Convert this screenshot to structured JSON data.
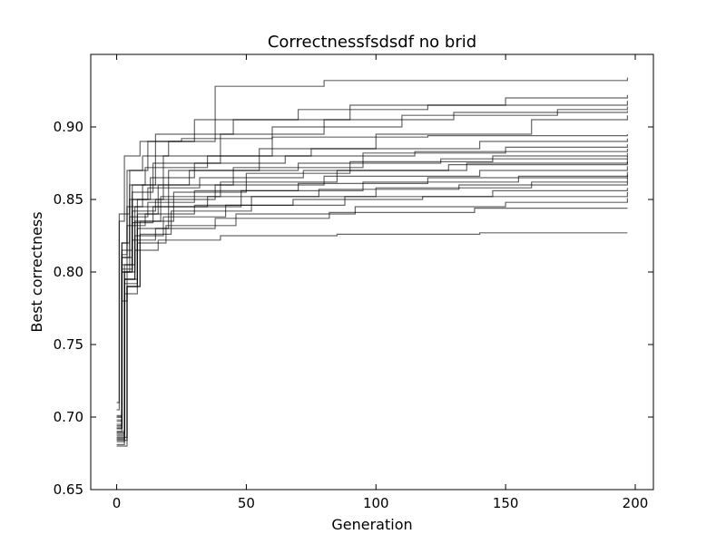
{
  "chart_data": {
    "type": "line",
    "title": "Correctnessfsdsdf no brid",
    "xlabel": "Generation",
    "ylabel": "Best correctness",
    "xlim": [
      -10,
      207
    ],
    "ylim": [
      0.65,
      0.95
    ],
    "xticks": [
      0,
      50,
      100,
      150,
      200
    ],
    "xtick_labels": [
      "0",
      "50",
      "100",
      "150",
      "200"
    ],
    "yticks": [
      0.65,
      0.7,
      0.75,
      0.8,
      0.85,
      0.9
    ],
    "ytick_labels": [
      "0.65",
      "0.70",
      "0.75",
      "0.80",
      "0.85",
      "0.90"
    ],
    "grid": false,
    "legend": "none",
    "line_color": "#000000",
    "series": [
      {
        "x": [
          0,
          2,
          4,
          10,
          20,
          38,
          80,
          197
        ],
        "values": [
          0.69,
          0.78,
          0.87,
          0.88,
          0.89,
          0.928,
          0.932,
          0.934
        ]
      },
      {
        "x": [
          0,
          3,
          6,
          15,
          45,
          90,
          150,
          197
        ],
        "values": [
          0.685,
          0.8,
          0.86,
          0.895,
          0.905,
          0.915,
          0.92,
          0.922
        ]
      },
      {
        "x": [
          0,
          2,
          5,
          12,
          30,
          70,
          120,
          197
        ],
        "values": [
          0.7,
          0.82,
          0.87,
          0.89,
          0.905,
          0.912,
          0.915,
          0.918
        ]
      },
      {
        "x": [
          0,
          4,
          8,
          18,
          60,
          110,
          170,
          197
        ],
        "values": [
          0.68,
          0.79,
          0.85,
          0.88,
          0.9,
          0.908,
          0.912,
          0.914
        ]
      },
      {
        "x": [
          0,
          2,
          6,
          14,
          40,
          80,
          130,
          197
        ],
        "values": [
          0.692,
          0.81,
          0.855,
          0.875,
          0.895,
          0.905,
          0.91,
          0.911
        ]
      },
      {
        "x": [
          0,
          3,
          7,
          20,
          55,
          100,
          160,
          197
        ],
        "values": [
          0.688,
          0.805,
          0.845,
          0.87,
          0.885,
          0.895,
          0.905,
          0.908
        ]
      },
      {
        "x": [
          0,
          1,
          3,
          9,
          25,
          60,
          120,
          197
        ],
        "values": [
          0.71,
          0.835,
          0.88,
          0.89,
          0.892,
          0.893,
          0.894,
          0.895
        ]
      },
      {
        "x": [
          0,
          2,
          5,
          11,
          35,
          75,
          140,
          197
        ],
        "values": [
          0.695,
          0.8,
          0.86,
          0.872,
          0.88,
          0.885,
          0.89,
          0.892
        ]
      },
      {
        "x": [
          0,
          3,
          8,
          16,
          45,
          95,
          150,
          197
        ],
        "values": [
          0.683,
          0.795,
          0.84,
          0.86,
          0.872,
          0.882,
          0.886,
          0.888
        ]
      },
      {
        "x": [
          0,
          2,
          6,
          13,
          30,
          65,
          115,
          197
        ],
        "values": [
          0.7,
          0.815,
          0.85,
          0.865,
          0.875,
          0.88,
          0.883,
          0.885
        ]
      },
      {
        "x": [
          0,
          4,
          9,
          22,
          50,
          90,
          145,
          197
        ],
        "values": [
          0.686,
          0.79,
          0.835,
          0.855,
          0.868,
          0.876,
          0.88,
          0.882
        ]
      },
      {
        "x": [
          0,
          2,
          4,
          10,
          28,
          70,
          125,
          197
        ],
        "values": [
          0.698,
          0.82,
          0.845,
          0.86,
          0.87,
          0.875,
          0.878,
          0.88
        ]
      },
      {
        "x": [
          0,
          3,
          7,
          17,
          40,
          85,
          135,
          197
        ],
        "values": [
          0.69,
          0.8,
          0.835,
          0.852,
          0.862,
          0.87,
          0.875,
          0.878
        ]
      },
      {
        "x": [
          0,
          1,
          5,
          12,
          32,
          72,
          128,
          197
        ],
        "values": [
          0.705,
          0.84,
          0.85,
          0.858,
          0.865,
          0.87,
          0.874,
          0.876
        ]
      },
      {
        "x": [
          0,
          2,
          6,
          15,
          38,
          80,
          140,
          197
        ],
        "values": [
          0.693,
          0.802,
          0.842,
          0.85,
          0.86,
          0.866,
          0.87,
          0.873
        ]
      },
      {
        "x": [
          0,
          3,
          8,
          20,
          48,
          95,
          155,
          197
        ],
        "values": [
          0.681,
          0.785,
          0.83,
          0.845,
          0.856,
          0.862,
          0.866,
          0.869
        ]
      },
      {
        "x": [
          0,
          2,
          5,
          12,
          30,
          70,
          120,
          197
        ],
        "values": [
          0.697,
          0.81,
          0.838,
          0.848,
          0.856,
          0.861,
          0.865,
          0.867
        ]
      },
      {
        "x": [
          0,
          4,
          9,
          21,
          52,
          100,
          160,
          197
        ],
        "values": [
          0.684,
          0.79,
          0.826,
          0.842,
          0.852,
          0.858,
          0.862,
          0.865
        ]
      },
      {
        "x": [
          0,
          2,
          6,
          14,
          35,
          78,
          132,
          197
        ],
        "values": [
          0.694,
          0.805,
          0.834,
          0.845,
          0.852,
          0.857,
          0.86,
          0.862
        ]
      },
      {
        "x": [
          0,
          3,
          7,
          18,
          42,
          88,
          145,
          197
        ],
        "values": [
          0.689,
          0.795,
          0.825,
          0.838,
          0.846,
          0.852,
          0.856,
          0.858
        ]
      },
      {
        "x": [
          0,
          2,
          4,
          11,
          30,
          68,
          118,
          197
        ],
        "values": [
          0.701,
          0.812,
          0.832,
          0.84,
          0.846,
          0.85,
          0.852,
          0.855
        ]
      },
      {
        "x": [
          0,
          3,
          8,
          19,
          46,
          92,
          150,
          197
        ],
        "values": [
          0.687,
          0.792,
          0.82,
          0.832,
          0.84,
          0.845,
          0.848,
          0.851
        ]
      },
      {
        "x": [
          0,
          2,
          6,
          15,
          38,
          82,
          138,
          197
        ],
        "values": [
          0.692,
          0.8,
          0.822,
          0.83,
          0.837,
          0.841,
          0.844,
          0.844
        ]
      },
      {
        "x": [
          0,
          3,
          7,
          16,
          40,
          85,
          140,
          197
        ],
        "values": [
          0.685,
          0.795,
          0.815,
          0.822,
          0.825,
          0.826,
          0.827,
          0.827
        ]
      }
    ]
  }
}
